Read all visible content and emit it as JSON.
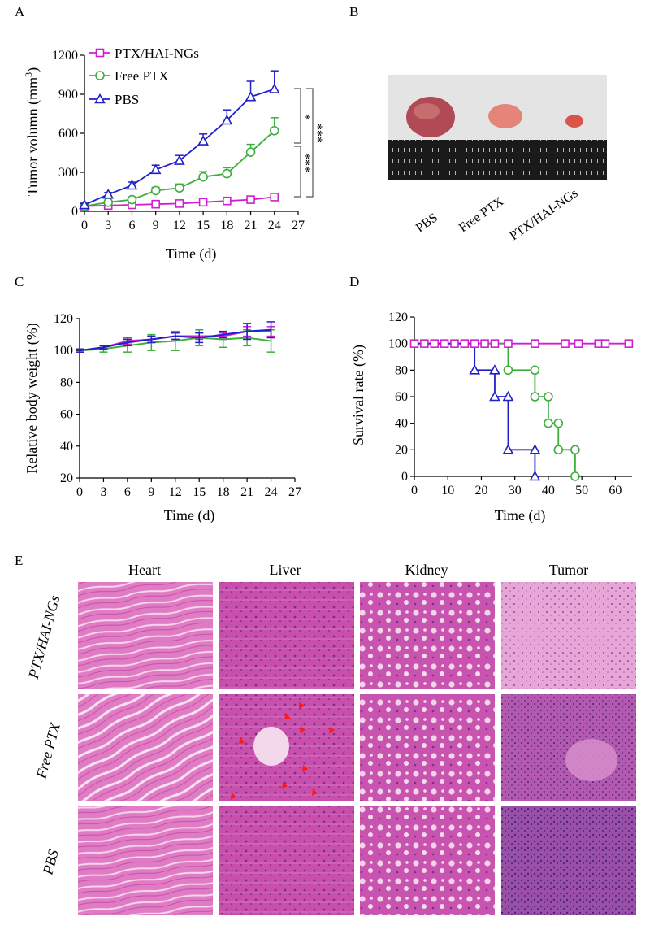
{
  "figure": {
    "panels": {
      "a": "A",
      "b": "B",
      "c": "C",
      "d": "D",
      "e": "E"
    }
  },
  "colors": {
    "magenta": "#d01fd0",
    "green": "#3dae3d",
    "blue": "#2020c8",
    "red": "#ff1a1a"
  },
  "chart_data": [
    {
      "id": "tumor_volume",
      "type": "line",
      "title": "",
      "xlabel": "Time (d)",
      "ylabel_main": "Tumor volumn (mm",
      "ylabel_sup": "3",
      "ylabel_end": ")",
      "xlim": [
        0,
        27
      ],
      "ylim": [
        0,
        1200
      ],
      "xticks": [
        0,
        3,
        6,
        9,
        12,
        15,
        18,
        21,
        24,
        27
      ],
      "yticks": [
        0,
        300,
        600,
        900,
        1200
      ],
      "x": [
        0,
        3,
        6,
        9,
        12,
        15,
        18,
        21,
        24
      ],
      "series": [
        {
          "name": "PTX/HAI-NGs",
          "color": "#d01fd0",
          "marker": "square",
          "values": [
            40,
            45,
            50,
            55,
            60,
            70,
            80,
            90,
            110
          ],
          "errors": [
            5,
            5,
            6,
            6,
            7,
            8,
            10,
            12,
            25
          ]
        },
        {
          "name": "Free PTX",
          "color": "#3dae3d",
          "marker": "circle",
          "values": [
            40,
            70,
            90,
            160,
            180,
            265,
            290,
            455,
            620
          ],
          "errors": [
            10,
            15,
            20,
            25,
            30,
            40,
            45,
            60,
            100
          ]
        },
        {
          "name": "PBS",
          "color": "#2020c8",
          "marker": "triangle",
          "values": [
            50,
            130,
            200,
            320,
            390,
            540,
            700,
            880,
            940
          ],
          "errors": [
            10,
            15,
            25,
            35,
            40,
            55,
            80,
            120,
            140
          ]
        }
      ],
      "significance": [
        "*",
        "***",
        "***"
      ]
    },
    {
      "id": "body_weight",
      "type": "line",
      "xlabel": "Time (d)",
      "ylabel": "Relative body weight  (%)",
      "xlim": [
        0,
        27
      ],
      "ylim": [
        20,
        120
      ],
      "xticks": [
        0,
        3,
        6,
        9,
        12,
        15,
        18,
        21,
        24,
        27
      ],
      "yticks": [
        20,
        40,
        60,
        80,
        100,
        120
      ],
      "x": [
        0,
        3,
        6,
        9,
        12,
        15,
        18,
        21,
        24
      ],
      "series": [
        {
          "name": "PTX/HAI-NGs",
          "color": "#d01fd0",
          "values": [
            100,
            102,
            106,
            107,
            109,
            109,
            109,
            112,
            112
          ],
          "errors": [
            1,
            1,
            2,
            2,
            2,
            2,
            2,
            3,
            3
          ]
        },
        {
          "name": "Free PTX",
          "color": "#3dae3d",
          "values": [
            100,
            101,
            103,
            105,
            106,
            108,
            107,
            108,
            106
          ],
          "errors": [
            1,
            2,
            4,
            5,
            6,
            5,
            5,
            5,
            7
          ]
        },
        {
          "name": "PBS",
          "color": "#2020c8",
          "values": [
            100,
            102,
            105,
            107,
            109,
            108,
            110,
            112,
            113
          ],
          "errors": [
            1,
            1,
            2,
            2,
            2,
            3,
            2,
            5,
            5
          ]
        }
      ]
    },
    {
      "id": "survival",
      "type": "line",
      "xlabel": "Time (d)",
      "ylabel": "Survival rate (%)",
      "xlim": [
        0,
        65
      ],
      "ylim": [
        0,
        120
      ],
      "xticks": [
        0,
        10,
        20,
        30,
        40,
        50,
        60
      ],
      "yticks": [
        0,
        20,
        40,
        60,
        80,
        100,
        120
      ],
      "series": [
        {
          "name": "PTX/HAI-NGs",
          "color": "#d01fd0",
          "marker": "square",
          "steps": [
            [
              0,
              100
            ],
            [
              65,
              100
            ]
          ],
          "markers": [
            [
              0,
              100
            ],
            [
              3,
              100
            ],
            [
              6,
              100
            ],
            [
              9,
              100
            ],
            [
              12,
              100
            ],
            [
              15,
              100
            ],
            [
              18,
              100
            ],
            [
              21,
              100
            ],
            [
              24,
              100
            ],
            [
              28,
              100
            ],
            [
              36,
              100
            ],
            [
              45,
              100
            ],
            [
              49,
              100
            ],
            [
              55,
              100
            ],
            [
              57,
              100
            ],
            [
              64,
              100
            ]
          ]
        },
        {
          "name": "Free PTX",
          "color": "#3dae3d",
          "marker": "circle",
          "steps": [
            [
              0,
              100
            ],
            [
              28,
              100
            ],
            [
              28,
              80
            ],
            [
              36,
              80
            ],
            [
              36,
              60
            ],
            [
              40,
              60
            ],
            [
              40,
              40
            ],
            [
              43,
              40
            ],
            [
              43,
              20
            ],
            [
              48,
              20
            ],
            [
              48,
              0
            ]
          ],
          "markers": [
            [
              28,
              80
            ],
            [
              36,
              80
            ],
            [
              36,
              60
            ],
            [
              40,
              60
            ],
            [
              40,
              40
            ],
            [
              43,
              40
            ],
            [
              43,
              20
            ],
            [
              48,
              20
            ],
            [
              48,
              0
            ]
          ]
        },
        {
          "name": "PBS",
          "color": "#2020c8",
          "marker": "triangle",
          "steps": [
            [
              0,
              100
            ],
            [
              18,
              100
            ],
            [
              18,
              80
            ],
            [
              24,
              80
            ],
            [
              24,
              60
            ],
            [
              28,
              60
            ],
            [
              28,
              20
            ],
            [
              36,
              20
            ],
            [
              36,
              0
            ]
          ],
          "markers": [
            [
              18,
              80
            ],
            [
              24,
              80
            ],
            [
              24,
              60
            ],
            [
              28,
              60
            ],
            [
              28,
              20
            ],
            [
              36,
              20
            ],
            [
              36,
              0
            ]
          ]
        }
      ]
    }
  ],
  "photo": {
    "labels": [
      "PBS",
      "Free PTX",
      "PTX/HAI-NGs"
    ]
  },
  "histology": {
    "columns": [
      "Heart",
      "Liver",
      "Kidney",
      "Tumor"
    ],
    "rows": [
      "PTX/HAI-NGs",
      "Free PTX",
      "PBS"
    ]
  }
}
